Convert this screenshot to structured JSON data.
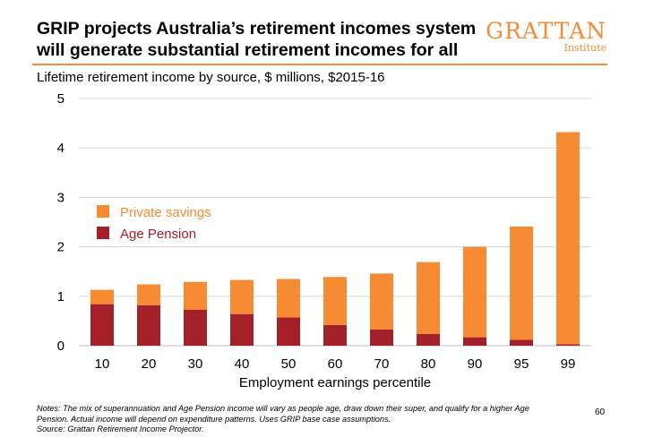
{
  "slide": {
    "title_line1": "GRIP projects Australia’s retirement incomes system",
    "title_line2": "will generate substantial retirement incomes for all",
    "logo_name": "GRATTAN",
    "logo_sub": "Institute",
    "page_number": "60",
    "notes_line1": "Notes: The mix of superannuation and Age Pension income will vary as people age, draw down their super, and qualify for a higher Age",
    "notes_line2": "Pension. Actual income will depend on expenditure patterns. Uses GRIP base case assumptions.",
    "notes_line3": "Source: Grattan Retirement Income Projector."
  },
  "colors": {
    "accent": "#f68b33",
    "private_savings": "#f68b33",
    "age_pension": "#a32028",
    "grid": "#d9d9d9"
  },
  "chart_data": {
    "type": "bar",
    "stacked": true,
    "title": "Lifetime retirement income by source, $ millions, $2015-16",
    "xlabel": "Employment earnings percentile",
    "ylabel": "",
    "ylim": [
      0,
      5
    ],
    "yticks": [
      0,
      1,
      2,
      3,
      4,
      5
    ],
    "grid": true,
    "legend_position": "upper-left",
    "categories": [
      "10",
      "20",
      "30",
      "40",
      "50",
      "60",
      "70",
      "80",
      "90",
      "95",
      "99"
    ],
    "series": [
      {
        "name": "Age Pension",
        "color": "#a32028",
        "values": [
          0.84,
          0.82,
          0.73,
          0.64,
          0.57,
          0.42,
          0.33,
          0.24,
          0.17,
          0.12,
          0.03
        ]
      },
      {
        "name": "Private savings",
        "color": "#f68b33",
        "values": [
          0.29,
          0.42,
          0.56,
          0.69,
          0.78,
          0.97,
          1.13,
          1.45,
          1.83,
          2.29,
          4.29
        ]
      }
    ],
    "legend": [
      "Private savings",
      "Age Pension"
    ]
  }
}
